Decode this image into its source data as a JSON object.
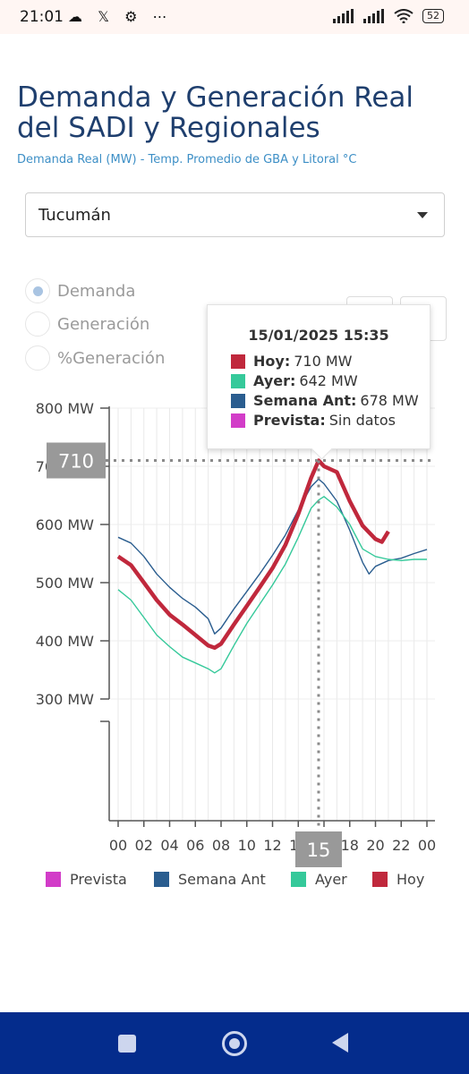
{
  "status_bar": {
    "time": "21:01",
    "icons_left": "☁ 𝕏 ⚙ ⋯",
    "battery": "52"
  },
  "page": {
    "title": "Demanda y Generación Real del SADI y Regionales",
    "subtitle": "Demanda Real (MW) - Temp. Promedio de GBA y Litoral °C"
  },
  "region_select": {
    "value": "Tucumán"
  },
  "radios": [
    {
      "label": "Demanda",
      "selected": true
    },
    {
      "label": "Generación",
      "selected": false
    },
    {
      "label": "%Generación",
      "selected": false
    }
  ],
  "tooltip": {
    "title": "15/01/2025 15:35",
    "rows": [
      {
        "label": "Hoy:",
        "value": "710 MW",
        "color": "#c0283c"
      },
      {
        "label": "Ayer:",
        "value": "642 MW",
        "color": "#35c99a"
      },
      {
        "label": "Semana Ant:",
        "value": "678 MW",
        "color": "#2a5d8f"
      },
      {
        "label": "Prevista:",
        "value": "Sin datos",
        "color": "#d23cc8"
      }
    ]
  },
  "crosshair": {
    "y_label": "710",
    "x_label": "15",
    "x_hour": 15.58,
    "y_value": 710
  },
  "legend": [
    {
      "label": "Prevista",
      "color": "#d23cc8"
    },
    {
      "label": "Semana Ant",
      "color": "#2a5d8f"
    },
    {
      "label": "Ayer",
      "color": "#35c99a"
    },
    {
      "label": "Hoy",
      "color": "#c0283c"
    }
  ],
  "chart_data": {
    "type": "line",
    "ylabel_unit": "MW",
    "ylim": [
      300,
      800
    ],
    "y_ticks": [
      "300 MW",
      "400 MW",
      "500 MW",
      "600 MW",
      "700 MW",
      "800 MW"
    ],
    "xlim": [
      0,
      24
    ],
    "x_ticks": [
      "00",
      "02",
      "04",
      "06",
      "08",
      "10",
      "12",
      "14",
      "16",
      "18",
      "20",
      "22",
      "00"
    ],
    "grid": true,
    "legend_position": "bottom",
    "series": [
      {
        "name": "Semana Ant",
        "color": "#2a5d8f",
        "x": [
          0,
          1,
          2,
          3,
          4,
          5,
          6,
          7,
          7.5,
          8,
          9,
          10,
          11,
          12,
          13,
          14,
          15,
          15.58,
          16,
          17,
          18,
          19,
          19.5,
          20,
          21,
          22,
          23,
          24
        ],
        "y": [
          578,
          568,
          545,
          515,
          492,
          473,
          458,
          438,
          412,
          422,
          455,
          485,
          515,
          547,
          582,
          625,
          665,
          678,
          670,
          640,
          590,
          535,
          515,
          528,
          538,
          542,
          550,
          557
        ]
      },
      {
        "name": "Ayer",
        "color": "#35c99a",
        "x": [
          0,
          1,
          2,
          3,
          4,
          5,
          6,
          7,
          7.5,
          8,
          9,
          10,
          11,
          12,
          13,
          14,
          15,
          15.58,
          16,
          17,
          18,
          19,
          20,
          21,
          22,
          23,
          24
        ],
        "y": [
          488,
          470,
          440,
          410,
          390,
          372,
          362,
          352,
          345,
          352,
          392,
          430,
          463,
          496,
          532,
          578,
          628,
          642,
          648,
          630,
          600,
          558,
          545,
          540,
          538,
          540,
          540
        ]
      },
      {
        "name": "Hoy",
        "color": "#c0283c",
        "x": [
          0,
          1,
          2,
          3,
          4,
          5,
          6,
          7,
          7.5,
          8,
          9,
          10,
          11,
          12,
          13,
          14,
          15,
          15.58,
          16,
          17,
          18,
          19,
          20,
          20.5,
          21
        ],
        "y": [
          545,
          530,
          500,
          470,
          445,
          428,
          410,
          392,
          388,
          395,
          428,
          460,
          492,
          525,
          565,
          618,
          680,
          710,
          700,
          690,
          640,
          598,
          575,
          570,
          588
        ]
      },
      {
        "name": "Prevista",
        "color": "#d23cc8",
        "x": [],
        "y": []
      }
    ]
  }
}
